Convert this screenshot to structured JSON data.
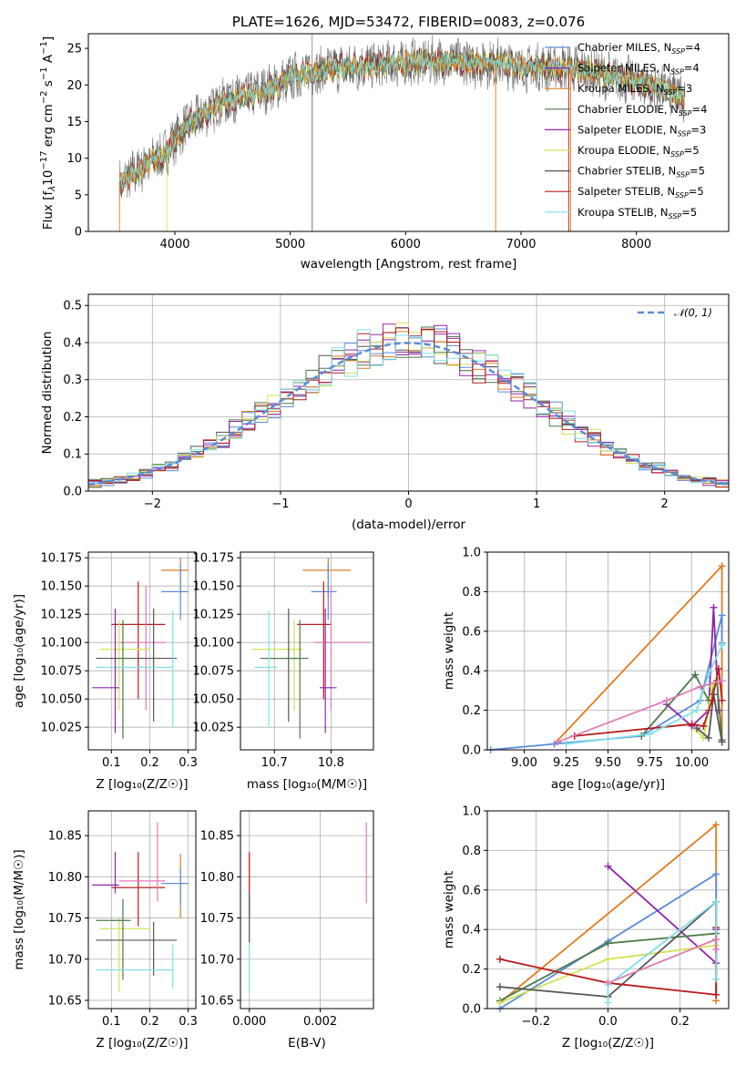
{
  "colors": {
    "chabrier_miles": "#5b8bd9",
    "salpeter_miles": "#8e24aa",
    "kroupa_miles": "#e07b20",
    "chabrier_elodie": "#4a7a4a",
    "salpeter_elodie": "#9c27b0",
    "kroupa_elodie": "#d4e157",
    "chabrier_stelib": "#555555",
    "salpeter_stelib": "#b71c1c",
    "kroupa_stelib": "#80deea",
    "pink": "#e07bb8",
    "gray": "#808080"
  },
  "chart_data": [
    {
      "id": "spectrum",
      "type": "line",
      "title": "PLATE=1626, MJD=53472, FIBERID=0083, z=0.076",
      "xlabel": "wavelength [Angstrom, rest frame]",
      "ylabel": "Flux [f_λ10^-17 erg cm^-2 s^-1 A^-1]",
      "ylabel_parts": {
        "a": "Flux [f",
        "b": "λ",
        "c": "10",
        "d": "−17",
        "e": " erg cm",
        "f": "−2",
        "g": " s",
        "h": "−1",
        "i": " A",
        "j": "−1",
        "k": "]"
      },
      "xlim": [
        3250,
        8800
      ],
      "ylim": [
        0,
        27
      ],
      "xticks": [
        4000,
        5000,
        6000,
        7000,
        8000
      ],
      "yticks": [
        0,
        5,
        10,
        15,
        20,
        25
      ],
      "grid": false,
      "legend_position": "right",
      "continuum": {
        "x": [
          3520,
          3600,
          3700,
          3800,
          3900,
          4000,
          4100,
          4200,
          4300,
          4400,
          4500,
          4600,
          4700,
          4800,
          4900,
          5000,
          5200,
          5400,
          5600,
          5800,
          6000,
          6200,
          6400,
          6600,
          6800,
          7000,
          7200,
          7400,
          7600,
          7800,
          8000,
          8200,
          8400
        ],
        "y": [
          6.5,
          7.5,
          8.5,
          9.5,
          10.5,
          12.5,
          14.5,
          15.5,
          16.5,
          17.5,
          18.0,
          18.5,
          19.0,
          19.5,
          20.0,
          21.0,
          21.8,
          22.3,
          22.5,
          22.8,
          23.0,
          23.2,
          23.2,
          23.0,
          23.0,
          22.5,
          22.3,
          22.3,
          22.0,
          21.0,
          20.5,
          19.5,
          18.5
        ]
      },
      "legend": [
        {
          "label": "Chabrier MILES, N",
          "n": "4",
          "color": "#5b8bd9"
        },
        {
          "label": "Salpeter MILES, N",
          "n": "4",
          "color": "#8e24aa"
        },
        {
          "label": "Kroupa MILES, N",
          "n": "3",
          "color": "#e07b20"
        },
        {
          "label": "Chabrier ELODIE, N",
          "n": "4",
          "color": "#4a7a4a"
        },
        {
          "label": "Salpeter ELODIE, N",
          "n": "3",
          "color": "#9c27b0"
        },
        {
          "label": "Kroupa ELODIE, N",
          "n": "5",
          "color": "#d4e157"
        },
        {
          "label": "Chabrier STELIB, N",
          "n": "5",
          "color": "#555555"
        },
        {
          "label": "Salpeter STELIB, N",
          "n": "5",
          "color": "#b71c1c"
        },
        {
          "label": "Kroupa STELIB, N",
          "n": "5",
          "color": "#80deea"
        }
      ],
      "legend_sub": "SSP",
      "legend_eq": "="
    },
    {
      "id": "residuals",
      "type": "step-histogram",
      "xlabel": "(data-model)/error",
      "ylabel": "Normed distribution",
      "xlim": [
        -2.5,
        2.5
      ],
      "ylim": [
        0,
        0.53
      ],
      "xticks": [
        -2,
        -1,
        0,
        1,
        2
      ],
      "yticks": [
        0.0,
        0.1,
        0.2,
        0.3,
        0.4,
        0.5
      ],
      "grid": true,
      "bin_width": 0.1,
      "reference_curve": "N(0,1)",
      "legend": [
        {
          "label": "𝒩(0, 1)",
          "color": "#5b8bd9",
          "style": "dashed"
        }
      ],
      "legend_position": "top-right"
    },
    {
      "id": "age_vs_Z",
      "type": "errorbar",
      "xlabel": "Z [log₁₀(Z/Z☉)]",
      "ylabel": "age [log₁₀(age/yr)]",
      "xlim": [
        0.04,
        0.32
      ],
      "ylim": [
        10.005,
        10.18
      ],
      "xticks": [
        0.1,
        0.2,
        0.3
      ],
      "yticks": [
        10.025,
        10.05,
        10.075,
        10.1,
        10.125,
        10.15,
        10.175
      ],
      "grid": true,
      "points": [
        {
          "x": 0.28,
          "xerr": [
            0.23,
            0.3
          ],
          "y": 10.164,
          "yerr": [
            10.14,
            10.175
          ],
          "color": "#e07b20"
        },
        {
          "x": 0.28,
          "xerr": [
            0.23,
            0.3
          ],
          "y": 10.145,
          "yerr": [
            10.12,
            10.17
          ],
          "color": "#5b8bd9"
        },
        {
          "x": 0.17,
          "xerr": [
            0.1,
            0.24
          ],
          "y": 10.116,
          "yerr": [
            10.05,
            10.154
          ],
          "color": "#b71c1c"
        },
        {
          "x": 0.19,
          "xerr": [
            0.12,
            0.24
          ],
          "y": 10.1,
          "yerr": [
            10.04,
            10.15
          ],
          "color": "#e07bb8"
        },
        {
          "x": 0.12,
          "xerr": [
            0.07,
            0.2
          ],
          "y": 10.094,
          "yerr": [
            10.04,
            10.12
          ],
          "color": "#d4e157"
        },
        {
          "x": 0.21,
          "xerr": [
            0.06,
            0.27
          ],
          "y": 10.086,
          "yerr": [
            10.03,
            10.13
          ],
          "color": "#555555"
        },
        {
          "x": 0.13,
          "xerr": [
            0.11,
            0.15
          ],
          "y": 10.086,
          "yerr": [
            10.015,
            10.12
          ],
          "color": "#4a7a4a"
        },
        {
          "x": 0.26,
          "xerr": [
            0.06,
            0.26
          ],
          "y": 10.078,
          "yerr": [
            10.025,
            10.128
          ],
          "color": "#80deea"
        },
        {
          "x": 0.11,
          "xerr": [
            0.05,
            0.12
          ],
          "y": 10.06,
          "yerr": [
            10.02,
            10.13
          ],
          "color": "#8e24aa"
        }
      ]
    },
    {
      "id": "age_vs_mass",
      "type": "errorbar",
      "xlabel": "mass [log₁₀(M/M☉)]",
      "ylabel": "",
      "xlim": [
        10.64,
        10.875
      ],
      "ylim": [
        10.005,
        10.18
      ],
      "xticks": [
        10.7,
        10.8
      ],
      "yticks": [
        10.025,
        10.05,
        10.075,
        10.1,
        10.125,
        10.15,
        10.175
      ],
      "grid": true,
      "points": [
        {
          "x": 10.795,
          "xerr": [
            10.75,
            10.835
          ],
          "y": 10.164,
          "yerr": [
            10.14,
            10.175
          ],
          "color": "#e07b20"
        },
        {
          "x": 10.795,
          "xerr": [
            10.765,
            10.81
          ],
          "y": 10.145,
          "yerr": [
            10.12,
            10.17
          ],
          "color": "#5b8bd9"
        },
        {
          "x": 10.787,
          "xerr": [
            10.74,
            10.8
          ],
          "y": 10.116,
          "yerr": [
            10.05,
            10.154
          ],
          "color": "#b71c1c"
        },
        {
          "x": 10.8,
          "xerr": [
            10.77,
            10.87
          ],
          "y": 10.1,
          "yerr": [
            10.04,
            10.15
          ],
          "color": "#e07bb8"
        },
        {
          "x": 10.735,
          "xerr": [
            10.66,
            10.75
          ],
          "y": 10.094,
          "yerr": [
            10.04,
            10.12
          ],
          "color": "#d4e157"
        },
        {
          "x": 10.725,
          "xerr": [
            10.68,
            10.745
          ],
          "y": 10.086,
          "yerr": [
            10.03,
            10.13
          ],
          "color": "#555555"
        },
        {
          "x": 10.745,
          "xerr": [
            10.675,
            10.76
          ],
          "y": 10.086,
          "yerr": [
            10.015,
            10.12
          ],
          "color": "#4a7a4a"
        },
        {
          "x": 10.69,
          "xerr": [
            10.665,
            10.705
          ],
          "y": 10.078,
          "yerr": [
            10.025,
            10.128
          ],
          "color": "#80deea"
        },
        {
          "x": 10.79,
          "xerr": [
            10.78,
            10.81
          ],
          "y": 10.06,
          "yerr": [
            10.02,
            10.13
          ],
          "color": "#8e24aa"
        }
      ]
    },
    {
      "id": "weight_vs_age",
      "type": "line",
      "xlabel": "age  [log₁₀(age/yr)]",
      "ylabel": "mass weight",
      "xlim": [
        8.78,
        10.22
      ],
      "ylim": [
        0,
        1.0
      ],
      "xticks": [
        9.0,
        9.25,
        9.5,
        9.75,
        10.0
      ],
      "xticklabels": [
        "9.00",
        "9.25",
        "9.50",
        "9.75",
        "10.00"
      ],
      "yticks": [
        0.0,
        0.2,
        0.4,
        0.6,
        0.8,
        1.0
      ],
      "grid": true,
      "series": [
        {
          "color": "#e07b20",
          "x": [
            9.18,
            10.18,
            10.18
          ],
          "y": [
            0.03,
            0.93,
            0.04
          ]
        },
        {
          "color": "#5b8bd9",
          "x": [
            8.8,
            9.18,
            9.7,
            10.05,
            10.18,
            10.18
          ],
          "y": [
            0.0,
            0.03,
            0.07,
            0.25,
            0.68,
            0.54
          ]
        },
        {
          "color": "#8e24aa",
          "x": [
            9.85,
            10.0,
            10.1,
            10.13,
            10.16
          ],
          "y": [
            0.23,
            0.12,
            0.2,
            0.72,
            0.2
          ]
        },
        {
          "color": "#4a7a4a",
          "x": [
            9.7,
            10.02,
            10.1,
            10.15,
            10.18
          ],
          "y": [
            0.07,
            0.38,
            0.25,
            0.35,
            0.05
          ]
        },
        {
          "color": "#d4e157",
          "x": [
            10.03,
            10.07,
            10.12,
            10.16
          ],
          "y": [
            0.1,
            0.06,
            0.32,
            0.35
          ]
        },
        {
          "color": "#555555",
          "x": [
            10.03,
            10.1,
            10.13,
            10.18
          ],
          "y": [
            0.11,
            0.06,
            0.28,
            0.04
          ]
        },
        {
          "color": "#b71c1c",
          "x": [
            9.3,
            10.0,
            10.07,
            10.12,
            10.16,
            10.18
          ],
          "y": [
            0.07,
            0.13,
            0.12,
            0.25,
            0.41,
            0.25
          ]
        },
        {
          "color": "#80deea",
          "x": [
            9.25,
            9.75,
            10.03,
            10.1,
            10.18
          ],
          "y": [
            0.03,
            0.08,
            0.2,
            0.38,
            0.53
          ]
        },
        {
          "color": "#e07bb8",
          "x": [
            9.2,
            9.85,
            10.05,
            10.18
          ],
          "y": [
            0.04,
            0.25,
            0.32,
            0.35
          ]
        }
      ]
    },
    {
      "id": "mass_vs_Z",
      "type": "errorbar",
      "xlabel": "Z [log₁₀(Z/Z☉)]",
      "ylabel": "mass [log₁₀(M/M☉)]",
      "xlim": [
        0.04,
        0.32
      ],
      "ylim": [
        10.64,
        10.88
      ],
      "xticks": [
        0.1,
        0.2,
        0.3
      ],
      "yticks": [
        10.65,
        10.7,
        10.75,
        10.8,
        10.85
      ],
      "grid": true,
      "points": [
        {
          "x": 0.28,
          "xerr": [
            0.23,
            0.3
          ],
          "y": 10.792,
          "yerr": [
            10.75,
            10.828
          ],
          "color": "#e07b20"
        },
        {
          "x": 0.28,
          "xerr": [
            0.23,
            0.3
          ],
          "y": 10.792,
          "yerr": [
            10.765,
            10.81
          ],
          "color": "#5b8bd9"
        },
        {
          "x": 0.17,
          "xerr": [
            0.1,
            0.24
          ],
          "y": 10.787,
          "yerr": [
            10.74,
            10.83
          ],
          "color": "#b71c1c"
        },
        {
          "x": 0.22,
          "xerr": [
            0.12,
            0.24
          ],
          "y": 10.795,
          "yerr": [
            10.77,
            10.866
          ],
          "color": "#e07bb8"
        },
        {
          "x": 0.12,
          "xerr": [
            0.07,
            0.2
          ],
          "y": 10.737,
          "yerr": [
            10.66,
            10.75
          ],
          "color": "#d4e157"
        },
        {
          "x": 0.21,
          "xerr": [
            0.06,
            0.27
          ],
          "y": 10.723,
          "yerr": [
            10.68,
            10.745
          ],
          "color": "#555555"
        },
        {
          "x": 0.13,
          "xerr": [
            0.06,
            0.15
          ],
          "y": 10.747,
          "yerr": [
            10.675,
            10.773
          ],
          "color": "#4a7a4a"
        },
        {
          "x": 0.26,
          "xerr": [
            0.06,
            0.26
          ],
          "y": 10.687,
          "yerr": [
            10.665,
            10.718
          ],
          "color": "#80deea"
        },
        {
          "x": 0.11,
          "xerr": [
            0.05,
            0.12
          ],
          "y": 10.79,
          "yerr": [
            10.78,
            10.83
          ],
          "color": "#8e24aa"
        }
      ]
    },
    {
      "id": "mass_vs_ebv",
      "type": "errorbar",
      "xlabel": "E(B-V)",
      "ylabel": "",
      "xlim": [
        -0.00025,
        0.0035
      ],
      "ylim": [
        10.64,
        10.88
      ],
      "xticks": [
        0.0,
        0.002
      ],
      "xticklabels": [
        "0.000",
        "0.002"
      ],
      "yticks": [
        10.65,
        10.7,
        10.75,
        10.8,
        10.85
      ],
      "grid": true,
      "points": [
        {
          "x": 0.0,
          "y": 10.79,
          "yerr": [
            10.75,
            10.83
          ],
          "color": "#b71c1c"
        },
        {
          "x": 0.0,
          "y": 10.75,
          "yerr": [
            10.72,
            10.78
          ],
          "color": "#555555"
        },
        {
          "x": 0.0,
          "y": 10.69,
          "yerr": [
            10.66,
            10.72
          ],
          "color": "#80deea"
        },
        {
          "x": 0.0033,
          "y": 10.81,
          "yerr": [
            10.768,
            10.866
          ],
          "color": "#e07bb8"
        }
      ]
    },
    {
      "id": "weight_vs_Z",
      "type": "line",
      "xlabel": "Z [log₁₀(Z/Z☉)]",
      "ylabel": "mass weight",
      "xlim": [
        -0.335,
        0.335
      ],
      "ylim": [
        0,
        1.0
      ],
      "xticks": [
        -0.2,
        0.0,
        0.2
      ],
      "xticklabels": [
        "−0.2",
        "0.0",
        "0.2"
      ],
      "yticks": [
        0.0,
        0.2,
        0.4,
        0.6,
        0.8,
        1.0
      ],
      "grid": true,
      "series": [
        {
          "color": "#e07b20",
          "x": [
            -0.3,
            0.3,
            0.3
          ],
          "y": [
            0.03,
            0.93,
            0.04
          ]
        },
        {
          "color": "#5b8bd9",
          "x": [
            -0.3,
            0.0,
            0.3,
            0.3
          ],
          "y": [
            0.0,
            0.34,
            0.68,
            0.54
          ]
        },
        {
          "color": "#8e24aa",
          "x": [
            0.0,
            0.3,
            0.3
          ],
          "y": [
            0.72,
            0.23,
            0.4
          ]
        },
        {
          "color": "#4a7a4a",
          "x": [
            -0.3,
            0.0,
            0.3,
            0.3
          ],
          "y": [
            0.04,
            0.33,
            0.38,
            0.54
          ]
        },
        {
          "color": "#d4e157",
          "x": [
            -0.3,
            0.0,
            0.3,
            0.3
          ],
          "y": [
            0.03,
            0.25,
            0.32,
            0.35
          ]
        },
        {
          "color": "#555555",
          "x": [
            -0.3,
            0.0,
            0.3,
            0.3
          ],
          "y": [
            0.11,
            0.06,
            0.54,
            0.07
          ]
        },
        {
          "color": "#b71c1c",
          "x": [
            -0.3,
            0.0,
            0.3,
            0.3
          ],
          "y": [
            0.25,
            0.13,
            0.07,
            0.41
          ]
        },
        {
          "color": "#80deea",
          "x": [
            0.0,
            0.0,
            0.3,
            0.3
          ],
          "y": [
            0.03,
            0.12,
            0.54,
            0.15
          ]
        },
        {
          "color": "#e07bb8",
          "x": [
            0.0,
            0.3,
            0.3
          ],
          "y": [
            0.13,
            0.35,
            0.3
          ]
        }
      ]
    }
  ]
}
